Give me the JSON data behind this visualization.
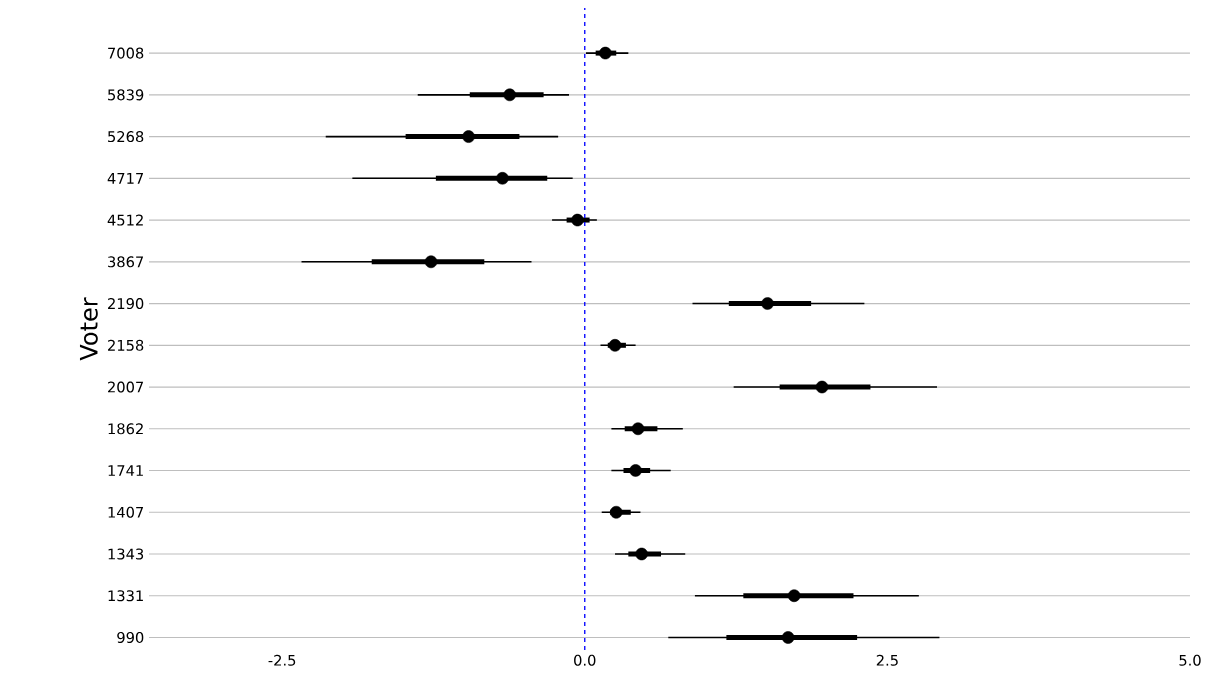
{
  "chart_data": {
    "type": "box",
    "orientation": "horizontal",
    "ylabel": "Voter",
    "categories": [
      "7008",
      "5839",
      "5268",
      "4717",
      "4512",
      "3867",
      "2190",
      "2158",
      "2007",
      "1862",
      "1741",
      "1407",
      "1343",
      "1331",
      "990"
    ],
    "boxes": [
      {
        "low": 0.01,
        "q1": 0.09,
        "median": 0.17,
        "q3": 0.26,
        "high": 0.36
      },
      {
        "low": -1.38,
        "q1": -0.95,
        "median": -0.62,
        "q3": -0.34,
        "high": -0.13
      },
      {
        "low": -2.14,
        "q1": -1.48,
        "median": -0.96,
        "q3": -0.54,
        "high": -0.22
      },
      {
        "low": -1.92,
        "q1": -1.23,
        "median": -0.68,
        "q3": -0.31,
        "high": -0.1
      },
      {
        "low": -0.27,
        "q1": -0.15,
        "median": -0.06,
        "q3": 0.04,
        "high": 0.1
      },
      {
        "low": -2.34,
        "q1": -1.76,
        "median": -1.27,
        "q3": -0.83,
        "high": -0.44
      },
      {
        "low": 0.89,
        "q1": 1.19,
        "median": 1.51,
        "q3": 1.87,
        "high": 2.31
      },
      {
        "low": 0.13,
        "q1": 0.19,
        "median": 0.25,
        "q3": 0.34,
        "high": 0.42
      },
      {
        "low": 1.23,
        "q1": 1.61,
        "median": 1.96,
        "q3": 2.36,
        "high": 2.91
      },
      {
        "low": 0.22,
        "q1": 0.33,
        "median": 0.44,
        "q3": 0.6,
        "high": 0.81
      },
      {
        "low": 0.22,
        "q1": 0.32,
        "median": 0.42,
        "q3": 0.54,
        "high": 0.71
      },
      {
        "low": 0.14,
        "q1": 0.21,
        "median": 0.26,
        "q3": 0.38,
        "high": 0.46
      },
      {
        "low": 0.25,
        "q1": 0.36,
        "median": 0.47,
        "q3": 0.63,
        "high": 0.83
      },
      {
        "low": 0.91,
        "q1": 1.31,
        "median": 1.73,
        "q3": 2.22,
        "high": 2.76
      },
      {
        "low": 0.69,
        "q1": 1.17,
        "median": 1.68,
        "q3": 2.25,
        "high": 2.93
      }
    ],
    "color": "#000000",
    "xlim": [
      -3.6,
      5.0
    ],
    "xticks": [
      -2.5,
      {
        "value": 0,
        "label": "0.0"
      },
      2.5,
      {
        "value": 5,
        "label": "5.0"
      }
    ],
    "grid": "y",
    "ref_lines": [
      {
        "axis": "x",
        "value": 0,
        "color": "#0000ff",
        "line_style": "dashed"
      }
    ]
  }
}
